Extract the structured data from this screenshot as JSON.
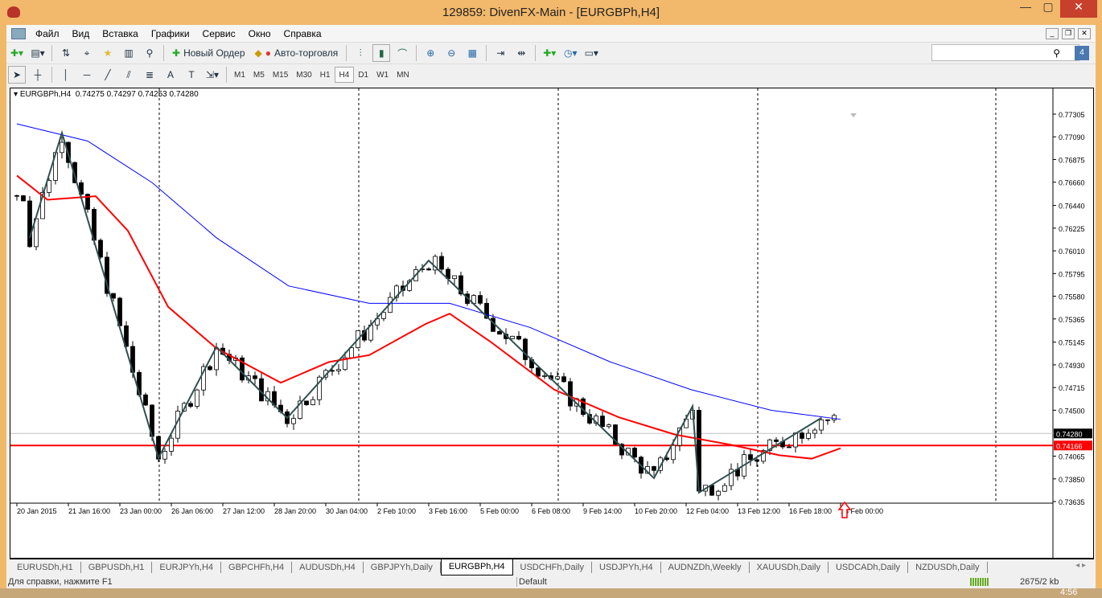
{
  "window": {
    "title": "129859: DivenFX-Main - [EURGBPh,H4]"
  },
  "menu": [
    "Файл",
    "Вид",
    "Вставка",
    "Графики",
    "Сервис",
    "Окно",
    "Справка"
  ],
  "toolbar": {
    "new_order": "Новый Ордер",
    "auto_trading": "Авто-торговля"
  },
  "timeframes": [
    "M1",
    "M5",
    "M15",
    "M30",
    "H1",
    "H4",
    "D1",
    "W1",
    "MN"
  ],
  "active_timeframe": "H4",
  "chart": {
    "header": "EURGBPh,H4  0.74275 0.74297 0.74253 0.74280",
    "price_ticks": [
      "0.77305",
      "0.77090",
      "0.76875",
      "0.76660",
      "0.76440",
      "0.76225",
      "0.76010",
      "0.75795",
      "0.75580",
      "0.75365",
      "0.75145",
      "0.74930",
      "0.74715",
      "0.74500",
      "0.74065",
      "0.73850",
      "0.73635"
    ],
    "price_range": [
      0.73635,
      0.77305
    ],
    "bid_label": "0.74280",
    "bid": 0.7428,
    "level_label": "0.74166",
    "level": 0.74166,
    "time_ticks": [
      "20 Jan 2015",
      "21 Jan 16:00",
      "23 Jan 00:00",
      "26 Jan 06:00",
      "27 Jan 12:00",
      "28 Jan 20:00",
      "30 Jan 04:00",
      "2 Feb 10:00",
      "3 Feb 16:00",
      "5 Feb 00:00",
      "6 Feb 08:00",
      "9 Feb 14:00",
      "10 Feb 20:00",
      "12 Feb 04:00",
      "13 Feb 12:00",
      "16 Feb 18:00",
      "18 Feb 00:00"
    ],
    "zigzag": [
      [
        2,
        0.76134
      ],
      [
        7,
        0.77128
      ],
      [
        22,
        0.74047
      ],
      [
        31,
        0.751
      ],
      [
        42,
        0.74427
      ],
      [
        64,
        0.75918
      ],
      [
        99,
        0.73857
      ],
      [
        105,
        0.74538
      ],
      [
        106,
        0.7372
      ],
      [
        125,
        0.74427
      ]
    ],
    "ma_fast": [
      [
        0,
        0.76723
      ],
      [
        4.75,
        0.76494
      ],
      [
        12.25,
        0.76527
      ],
      [
        17.25,
        0.762
      ],
      [
        23.5,
        0.7548
      ],
      [
        31,
        0.75087
      ],
      [
        41,
        0.74761
      ],
      [
        48.5,
        0.74957
      ],
      [
        54.75,
        0.75022
      ],
      [
        63.5,
        0.75317
      ],
      [
        67.25,
        0.75415
      ],
      [
        73.5,
        0.75153
      ],
      [
        83.5,
        0.74695
      ],
      [
        93.5,
        0.74434
      ],
      [
        102.25,
        0.7427
      ],
      [
        111,
        0.74172
      ],
      [
        118.5,
        0.74074
      ],
      [
        123.5,
        0.74041
      ],
      [
        128,
        0.7414
      ]
    ],
    "ma_slow": [
      [
        0,
        0.77213
      ],
      [
        11,
        0.7705
      ],
      [
        21,
        0.76657
      ],
      [
        31,
        0.76134
      ],
      [
        42.25,
        0.75677
      ],
      [
        54.75,
        0.75513
      ],
      [
        67.25,
        0.75513
      ],
      [
        79.75,
        0.75284
      ],
      [
        92.25,
        0.74957
      ],
      [
        104.75,
        0.74695
      ],
      [
        117.25,
        0.74499
      ],
      [
        128,
        0.74414
      ]
    ],
    "colors": {
      "fast": "#ff0000",
      "slow": "#0000ff",
      "zigzag": "#2f4f4f",
      "level": "#ff0000"
    }
  },
  "tabs": [
    "EURUSDh,H1",
    "GBPUSDh,H1",
    "EURJPYh,H4",
    "GBPCHFh,H4",
    "AUDUSDh,H4",
    "GBPJPYh,Daily",
    "EURGBPh,H4",
    "USDCHFh,Daily",
    "USDJPYh,H4",
    "AUDNZDh,Weekly",
    "XAUUSDh,Daily",
    "USDCADh,Daily",
    "NZDUSDh,Daily"
  ],
  "active_tab": "EURGBPh,H4",
  "status": {
    "help": "Для справки, нажмите F1",
    "profile": "Default",
    "traffic": "2675/2 kb"
  },
  "taskbar": {
    "clock": "4:56"
  }
}
